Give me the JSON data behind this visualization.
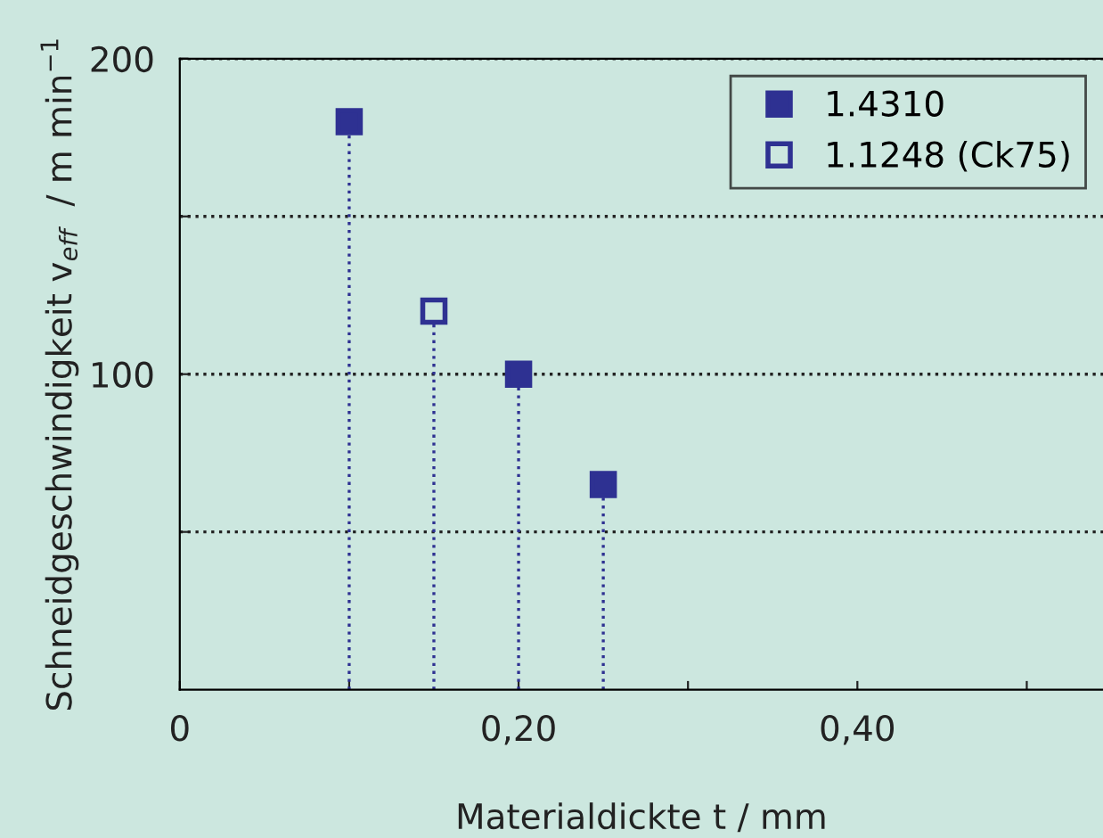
{
  "chart_data": {
    "type": "lollipop",
    "xlabel": "Materialdickte t / mm",
    "ylabel": "Schneidgeschwindigkeit v$_{eff}$  / m min$^{−1}$",
    "xlim": [
      0,
      0.545
    ],
    "xticks": [
      0,
      {
        "value": 0.1,
        "label": null
      },
      {
        "value": 0.2,
        "label": "0,20"
      },
      {
        "value": 0.3,
        "label": null
      },
      {
        "value": 0.4,
        "label": "0,40"
      },
      {
        "value": 0.5,
        "label": null
      }
    ],
    "ylim": [
      0,
      200
    ],
    "yticks": [
      {
        "value": 50,
        "label": null
      },
      100,
      {
        "value": 150,
        "label": null
      },
      200
    ],
    "grid": "y",
    "legend": "top right",
    "marker": "square",
    "line_style": "dotted",
    "series": [
      {
        "name": "1.4310",
        "color": "#2e3192",
        "x": [
          0.1,
          0.2,
          0.25
        ],
        "values": [
          180,
          100,
          65
        ]
      },
      {
        "name": "1.1248 (Ck75)",
        "color": "#2e3192",
        "x": [
          0.15
        ],
        "values": [
          120
        ],
        "colors": [
          "#cce7df"
        ]
      }
    ]
  }
}
